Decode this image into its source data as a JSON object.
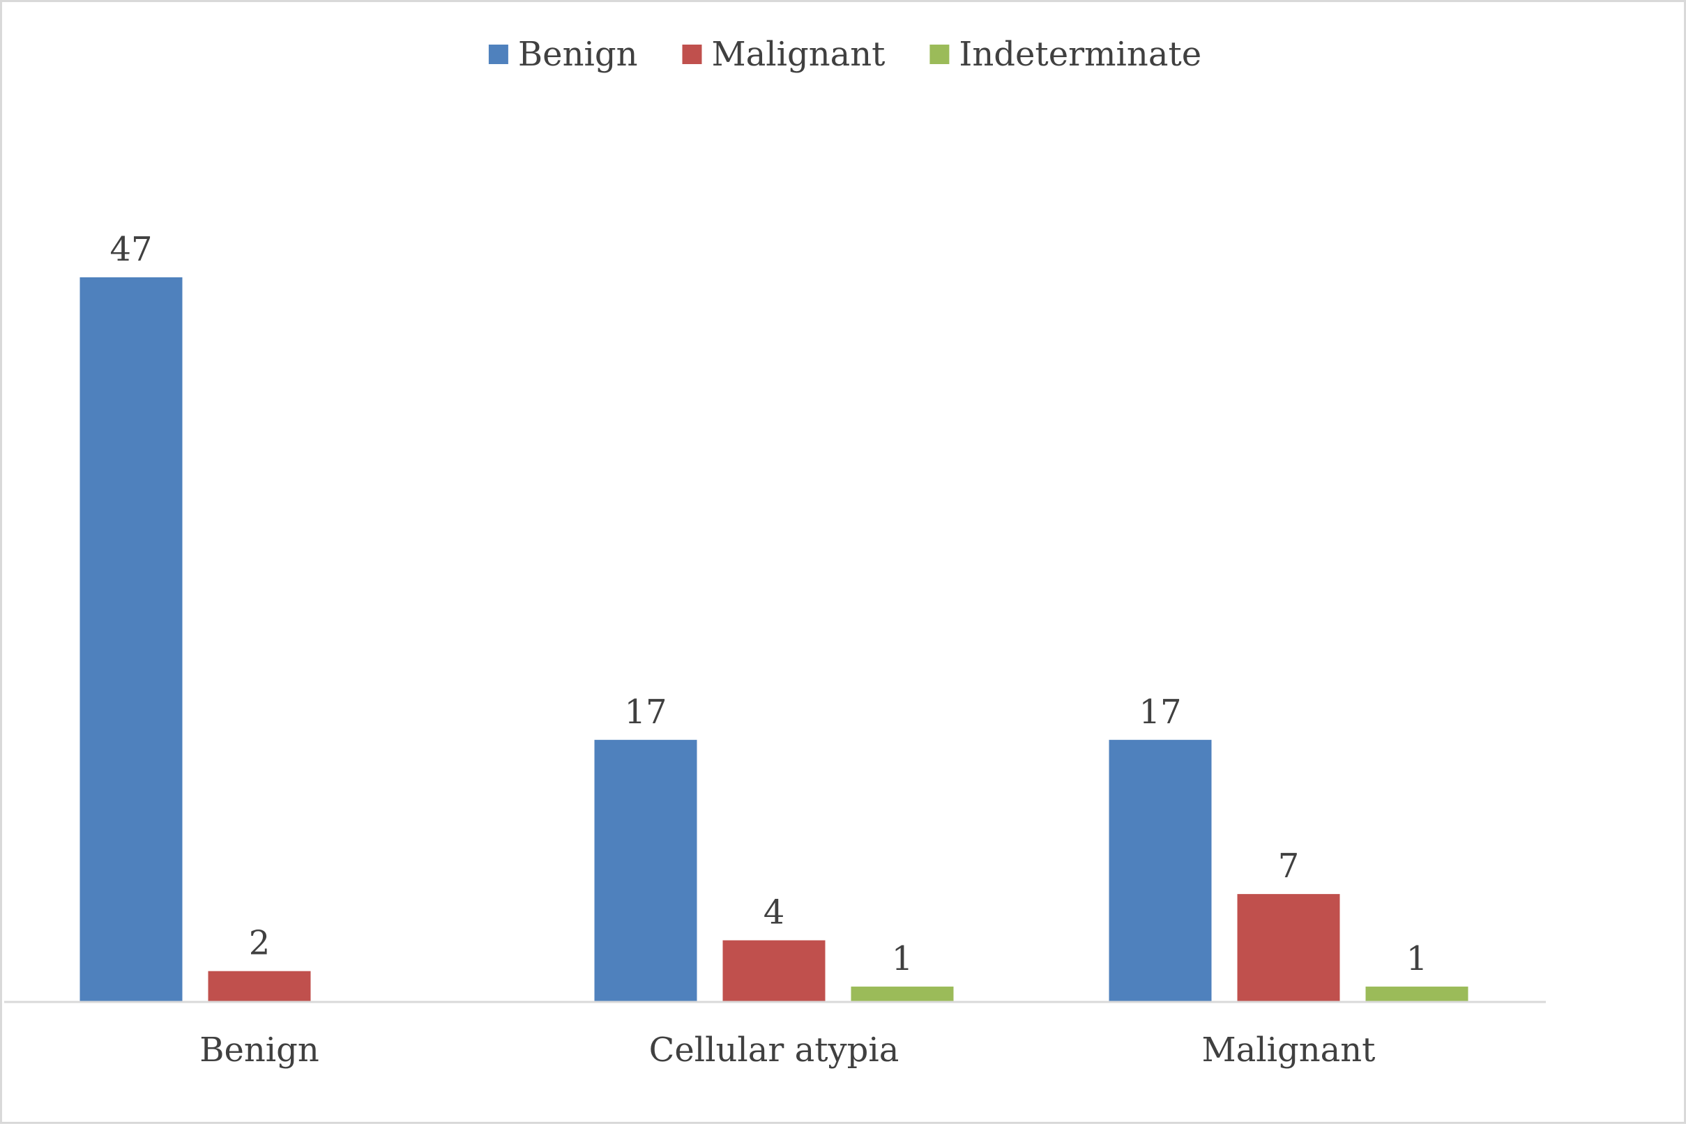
{
  "chart_data": {
    "type": "bar",
    "title": "",
    "xlabel": "",
    "ylabel": "",
    "categories": [
      "Benign",
      "Cellular atypia",
      "Malignant"
    ],
    "series": [
      {
        "name": "Benign",
        "color": "#4f81bd",
        "values": [
          47,
          17,
          17
        ]
      },
      {
        "name": "Malignant",
        "color": "#c0504d",
        "values": [
          2,
          4,
          7
        ]
      },
      {
        "name": "Indeterminate",
        "color": "#9bbb59",
        "values": [
          null,
          1,
          1
        ]
      }
    ],
    "data_labels": [
      [
        "47",
        "17",
        "17"
      ],
      [
        "2",
        "4",
        "7"
      ],
      [
        "",
        "1",
        "1"
      ]
    ],
    "ylim": [
      0,
      47
    ],
    "grid": false,
    "legend_position": "top-center",
    "y_axis_visible": false
  }
}
